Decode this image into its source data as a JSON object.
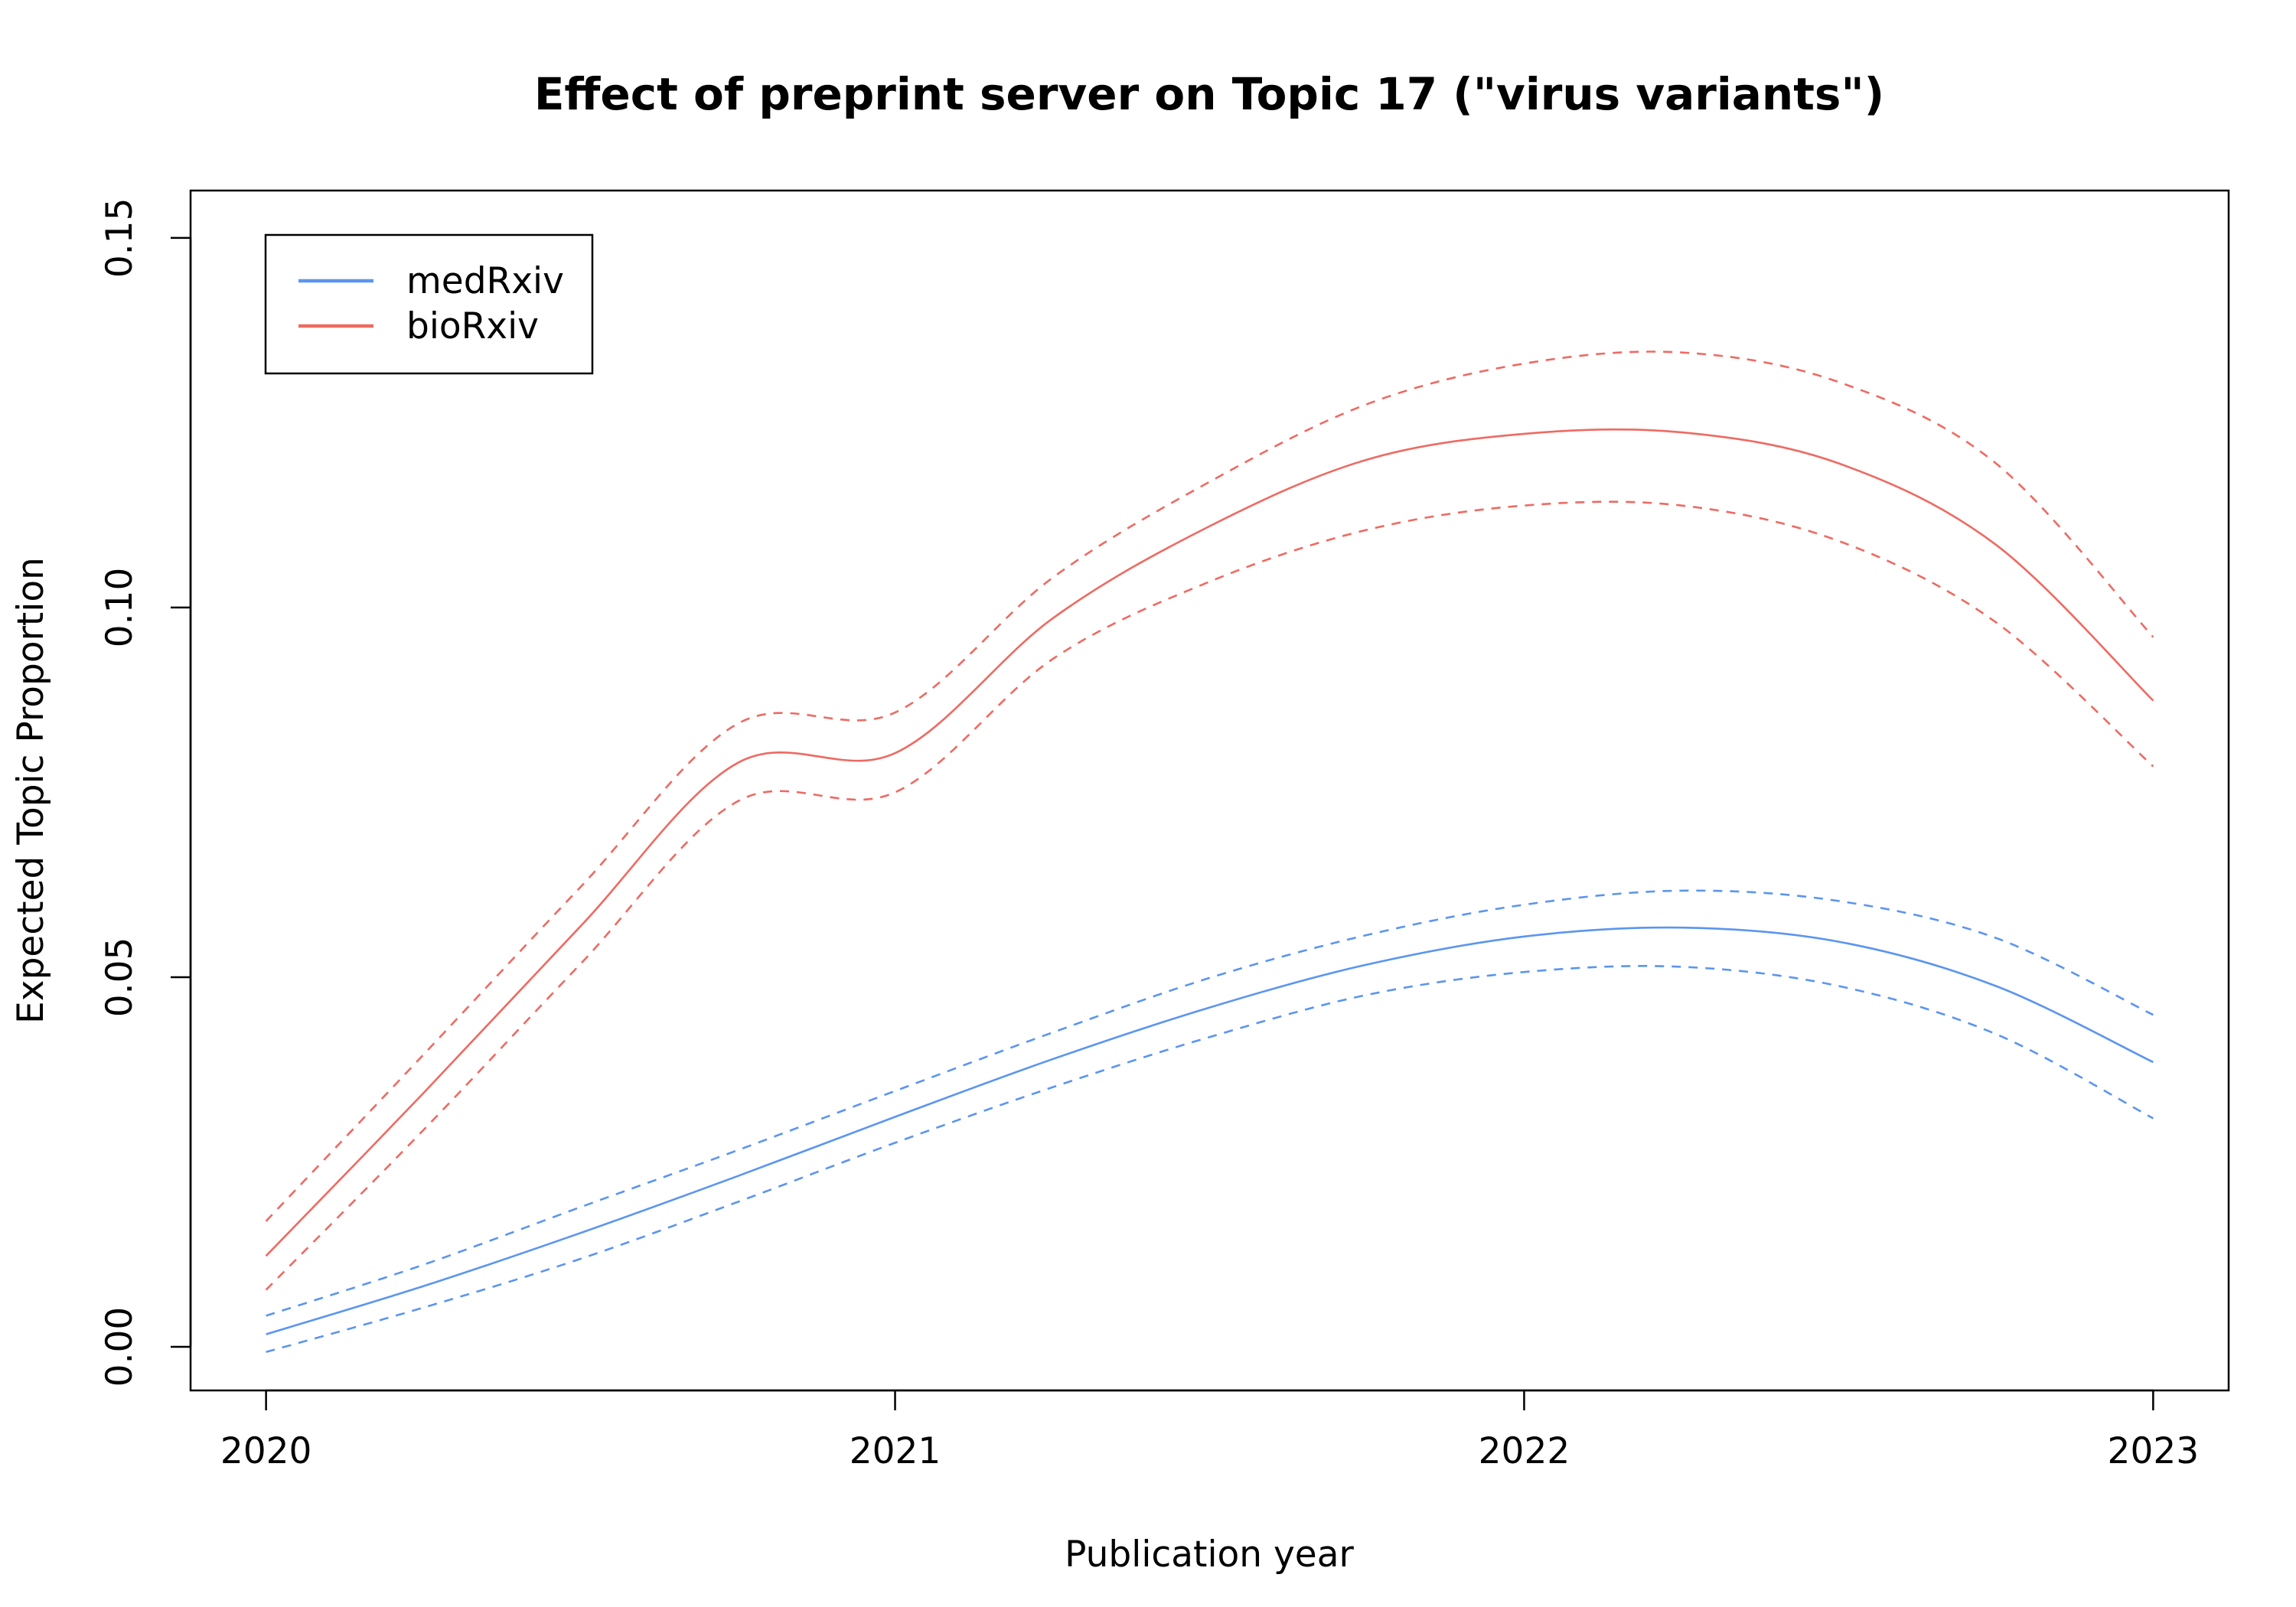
{
  "chart_data": {
    "type": "line",
    "title": "Effect of preprint server on Topic 17 (\"virus variants\")",
    "xlabel": "Publication year",
    "ylabel": "Expected Topic Proportion",
    "xlim": [
      2019.88,
      2023.12
    ],
    "ylim": [
      -0.0059,
      0.1564
    ],
    "x_ticks": [
      "2020",
      "2021",
      "2022",
      "2023"
    ],
    "y_ticks": [
      "0.00",
      "0.05",
      "0.10",
      "0.15"
    ],
    "grid": false,
    "legend": {
      "position": "top-left",
      "entries": [
        "medRxiv",
        "bioRxiv"
      ]
    },
    "x": [
      2020.0,
      2020.25,
      2020.5,
      2020.75,
      2021.0,
      2021.25,
      2021.5,
      2021.75,
      2022.0,
      2022.25,
      2022.5,
      2022.75,
      2023.0
    ],
    "series": [
      {
        "name": "medRxiv",
        "color": "#5b95f0",
        "estimate": [
          0.0017,
          0.0082,
          0.0154,
          0.0231,
          0.0311,
          0.0389,
          0.0459,
          0.0517,
          0.0555,
          0.0567,
          0.0548,
          0.0488,
          0.0385
        ],
        "lower": [
          -0.0007,
          0.0053,
          0.0119,
          0.0196,
          0.0276,
          0.0351,
          0.0419,
          0.0476,
          0.0507,
          0.0514,
          0.0488,
          0.0423,
          0.0309
        ],
        "upper": [
          0.0042,
          0.0111,
          0.0189,
          0.0266,
          0.0346,
          0.0425,
          0.0499,
          0.0557,
          0.0598,
          0.0617,
          0.0603,
          0.0553,
          0.0449
        ]
      },
      {
        "name": "bioRxiv",
        "color": "#ee6a62",
        "estimate": [
          0.0123,
          0.0343,
          0.0569,
          0.079,
          0.0803,
          0.0985,
          0.111,
          0.12,
          0.1235,
          0.1237,
          0.1195,
          0.1085,
          0.0874
        ],
        "lower": [
          0.0077,
          0.0293,
          0.0518,
          0.0738,
          0.075,
          0.093,
          0.1035,
          0.1105,
          0.1138,
          0.1138,
          0.109,
          0.098,
          0.0785
        ],
        "upper": [
          0.017,
          0.0395,
          0.0622,
          0.0843,
          0.0858,
          0.104,
          0.117,
          0.1275,
          0.133,
          0.1345,
          0.1305,
          0.1195,
          0.096
        ]
      }
    ]
  }
}
